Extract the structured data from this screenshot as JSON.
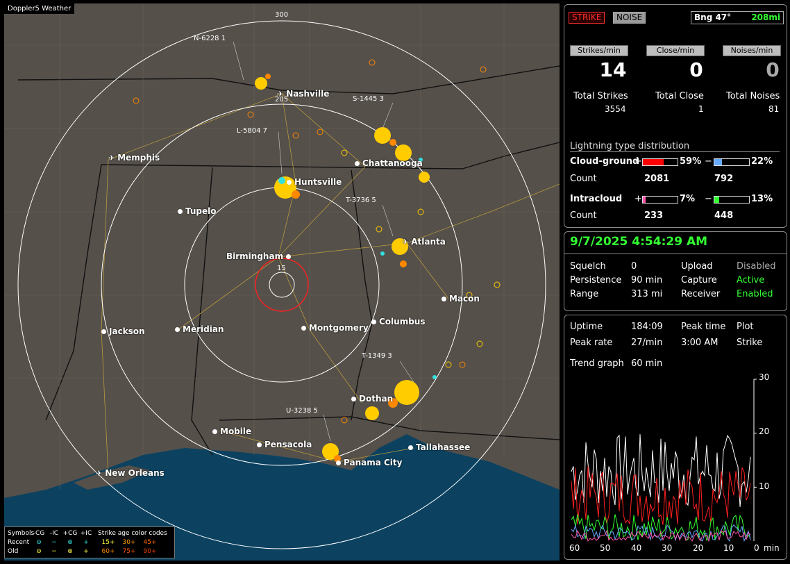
{
  "map": {
    "title": "Doppler5 Weather",
    "ring_labels": [
      "300",
      "205",
      "15"
    ],
    "cities": [
      {
        "name": "Nashville",
        "icon": "plane"
      },
      {
        "name": "Memphis",
        "icon": "plane"
      },
      {
        "name": "Chattanooga",
        "icon": "dot"
      },
      {
        "name": "Huntsville",
        "icon": "dot"
      },
      {
        "name": "Tupelo",
        "icon": "dot"
      },
      {
        "name": "Atlanta",
        "icon": "plane"
      },
      {
        "name": "Birmingham",
        "icon": "dot"
      },
      {
        "name": "Macon",
        "icon": "dot"
      },
      {
        "name": "Jackson",
        "icon": "dot"
      },
      {
        "name": "Meridian",
        "icon": "dot"
      },
      {
        "name": "Montgomery",
        "icon": "dot"
      },
      {
        "name": "Columbus",
        "icon": "dot"
      },
      {
        "name": "Dothan",
        "icon": "dot"
      },
      {
        "name": "Mobile",
        "icon": "dot"
      },
      {
        "name": "Pensacola",
        "icon": "dot"
      },
      {
        "name": "Tallahassee",
        "icon": "dot"
      },
      {
        "name": "Panama City",
        "icon": "dot"
      },
      {
        "name": "New Orleans",
        "icon": "plane"
      }
    ],
    "storm_labels": [
      "N-6228 1",
      "S-1445 3",
      "L-5804 7",
      "T-3736 5",
      "T-1349 3",
      "U-3238 5"
    ],
    "legend": {
      "symbols_label": "Symbols",
      "headers": [
        "-CG",
        "-IC",
        "+CG",
        "+IC"
      ],
      "age_title": "Strike age color codes",
      "recent_label": "Recent",
      "old_label": "Old",
      "recent_ages": [
        "15+",
        "30+",
        "45+"
      ],
      "old_ages": [
        "60+",
        "75+",
        "90+"
      ],
      "age_colors": [
        "#ffff44",
        "#ff9900",
        "#ff6600",
        "#ff8800",
        "#ff5500",
        "#ee4400"
      ]
    }
  },
  "strike_panel": {
    "strike_btn": "STRIKE",
    "noise_btn": "NOISE",
    "bearing": "Bng 47°",
    "distance": "208mi",
    "rates": [
      {
        "label": "Strikes/min",
        "value": "14"
      },
      {
        "label": "Close/min",
        "value": "0"
      },
      {
        "label": "Noises/min",
        "value": "0"
      }
    ],
    "totals": [
      {
        "label": "Total Strikes",
        "value": "3554"
      },
      {
        "label": "Total Close",
        "value": "1"
      },
      {
        "label": "Total Noises",
        "value": "81"
      }
    ],
    "dist_title": "Lightning type distribution",
    "cg_label": "Cloud-ground",
    "ic_label": "Intracloud",
    "count_label": "Count",
    "plus": "+",
    "minus": "−",
    "cg_pos_pct": "59%",
    "cg_pos_frac": 0.59,
    "cg_pos_color": "#ff0000",
    "cg_neg_pct": "22%",
    "cg_neg_frac": 0.22,
    "cg_neg_color": "#66aaff",
    "ic_pos_pct": "7%",
    "ic_pos_frac": 0.07,
    "ic_pos_color": "#ff55aa",
    "ic_neg_pct": "13%",
    "ic_neg_frac": 0.13,
    "ic_neg_color": "#33ff33",
    "cg_pos_count": "2081",
    "cg_neg_count": "792",
    "ic_pos_count": "233",
    "ic_neg_count": "448"
  },
  "status_panel": {
    "datetime": "9/7/2025 4:54:29 AM",
    "rows": [
      {
        "k1": "Squelch",
        "v1": "0",
        "k2": "Upload",
        "v2": "Disabled"
      },
      {
        "k1": "Persistence",
        "v1": "90 min",
        "k2": "Capture",
        "v2": "Active"
      },
      {
        "k1": "Range",
        "v1": "313 mi",
        "k2": "Receiver",
        "v2": "Enabled"
      }
    ]
  },
  "trend_panel": {
    "uptime_label": "Uptime",
    "uptime": "184:09",
    "peak_time_label": "Peak time",
    "plot_label": "Plot",
    "peak_rate_label": "Peak rate",
    "peak_rate": "27/min",
    "peak_time": "3:00 AM",
    "plot_value": "Strike",
    "trend_label": "Trend graph",
    "trend_value": "60 min",
    "y_ticks": [
      "30",
      "20",
      "10"
    ],
    "x_ticks": [
      "60",
      "50",
      "40",
      "30",
      "20",
      "10",
      "0"
    ],
    "x_unit": "min",
    "series_colors": [
      "#ffffff",
      "#ff2020",
      "#33ff33",
      "#66aaff",
      "#ff55aa"
    ]
  }
}
